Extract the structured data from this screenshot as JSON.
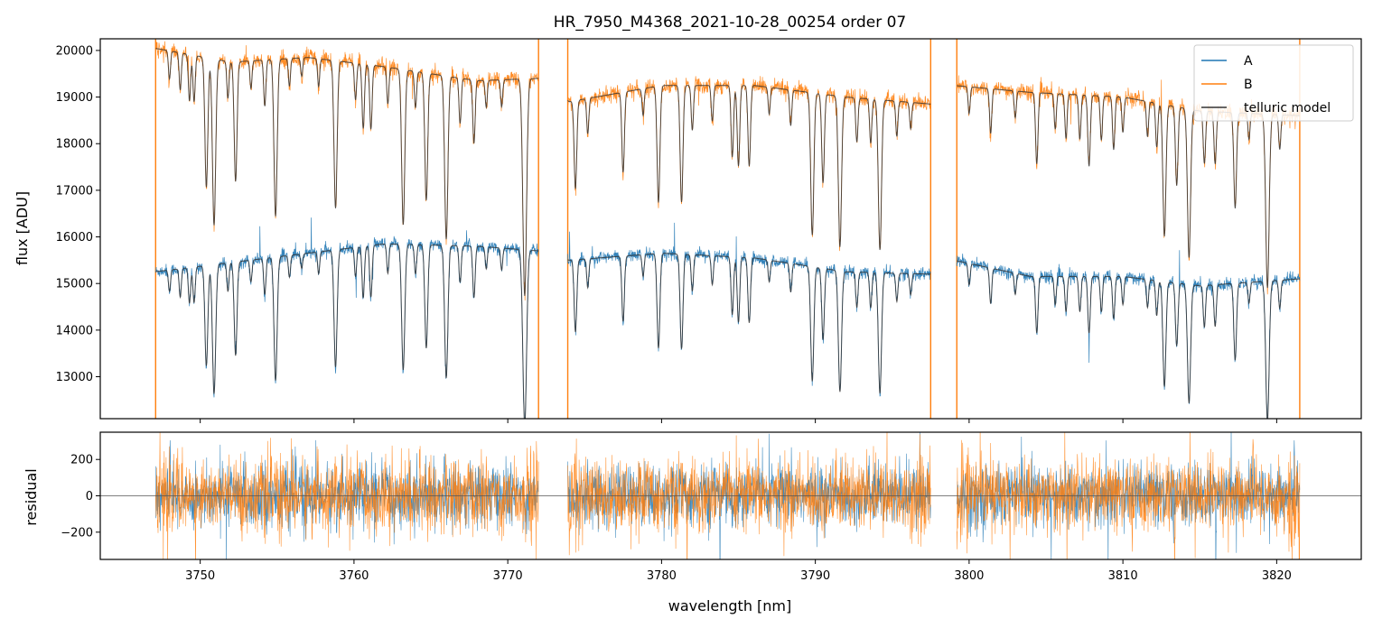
{
  "chart_data": {
    "type": "line",
    "title": "HR_7950_M4368_2021-10-28_00254  order 07",
    "colors": {
      "A": "#1f77b4",
      "B": "#ff7f0e",
      "telluric": "#333333",
      "zero": "#555555"
    },
    "xlabel": "wavelength [nm]",
    "xlim": [
      3743.5,
      3825.5
    ],
    "xticks": [
      3750,
      3760,
      3770,
      3780,
      3790,
      3800,
      3810,
      3820
    ],
    "xtick_labels": [
      "3750",
      "3760",
      "3770",
      "3780",
      "3790",
      "3800",
      "3810",
      "3820"
    ],
    "segments": [
      [
        3747.1,
        3772.0
      ],
      [
        3773.9,
        3797.5
      ],
      [
        3799.2,
        3821.5
      ]
    ],
    "legend_position": "top-right",
    "top": {
      "ylabel": "flux [ADU]",
      "ylim": [
        12100,
        20250
      ],
      "yticks": [
        13000,
        14000,
        15000,
        16000,
        17000,
        18000,
        19000,
        20000
      ],
      "ytick_labels": [
        "13000",
        "14000",
        "15000",
        "16000",
        "17000",
        "18000",
        "19000",
        "20000"
      ],
      "series": [
        {
          "name": "A",
          "key": "A",
          "continuum": [
            [
              3747,
              15250
            ],
            [
              3757,
              15650
            ],
            [
              3762,
              15850
            ],
            [
              3768,
              15800
            ],
            [
              3772,
              15700
            ],
            [
              3774,
              15500
            ],
            [
              3780,
              15650
            ],
            [
              3786,
              15550
            ],
            [
              3792,
              15250
            ],
            [
              3797.5,
              15200
            ],
            [
              3799,
              15500
            ],
            [
              3804,
              15150
            ],
            [
              3810,
              15150
            ],
            [
              3815,
              14950
            ],
            [
              3821.5,
              15100
            ]
          ]
        },
        {
          "name": "B",
          "key": "B",
          "continuum": [
            [
              3747,
              20050
            ],
            [
              3752,
              19750
            ],
            [
              3757,
              19850
            ],
            [
              3762,
              19650
            ],
            [
              3768,
              19350
            ],
            [
              3772,
              19400
            ],
            [
              3774,
              18900
            ],
            [
              3780,
              19250
            ],
            [
              3786,
              19250
            ],
            [
              3792,
              19000
            ],
            [
              3797.5,
              18850
            ],
            [
              3799,
              19250
            ],
            [
              3804,
              19100
            ],
            [
              3810,
              19000
            ],
            [
              3815,
              18700
            ],
            [
              3821.5,
              18600
            ]
          ]
        }
      ],
      "model_name": "telluric model",
      "lines": [
        [
          3748.0,
          0.03
        ],
        [
          3748.7,
          0.04
        ],
        [
          3749.3,
          0.05
        ],
        [
          3749.6,
          0.05
        ],
        [
          3750.4,
          0.14
        ],
        [
          3750.9,
          0.18
        ],
        [
          3751.8,
          0.04
        ],
        [
          3752.3,
          0.13
        ],
        [
          3753.3,
          0.03
        ],
        [
          3754.2,
          0.05
        ],
        [
          3754.9,
          0.17
        ],
        [
          3755.8,
          0.03
        ],
        [
          3756.6,
          0.02
        ],
        [
          3757.7,
          0.03
        ],
        [
          3758.8,
          0.16
        ],
        [
          3760.1,
          0.04
        ],
        [
          3760.6,
          0.07
        ],
        [
          3761.1,
          0.07
        ],
        [
          3762.2,
          0.04
        ],
        [
          3763.2,
          0.17
        ],
        [
          3764.0,
          0.04
        ],
        [
          3764.7,
          0.14
        ],
        [
          3766.0,
          0.18
        ],
        [
          3766.9,
          0.05
        ],
        [
          3767.8,
          0.07
        ],
        [
          3768.6,
          0.03
        ],
        [
          3769.6,
          0.03
        ],
        [
          3771.1,
          0.24
        ],
        [
          3774.4,
          0.1
        ],
        [
          3775.2,
          0.04
        ],
        [
          3777.5,
          0.09
        ],
        [
          3778.8,
          0.03
        ],
        [
          3779.8,
          0.13
        ],
        [
          3781.3,
          0.13
        ],
        [
          3782.0,
          0.05
        ],
        [
          3783.3,
          0.04
        ],
        [
          3784.6,
          0.08
        ],
        [
          3785.0,
          0.09
        ],
        [
          3785.7,
          0.09
        ],
        [
          3787.0,
          0.03
        ],
        [
          3788.4,
          0.04
        ],
        [
          3789.8,
          0.16
        ],
        [
          3790.5,
          0.1
        ],
        [
          3791.6,
          0.17
        ],
        [
          3792.7,
          0.05
        ],
        [
          3793.6,
          0.05
        ],
        [
          3794.2,
          0.17
        ],
        [
          3795.3,
          0.04
        ],
        [
          3796.2,
          0.03
        ],
        [
          3800.0,
          0.03
        ],
        [
          3801.4,
          0.05
        ],
        [
          3803.0,
          0.03
        ],
        [
          3804.4,
          0.08
        ],
        [
          3805.6,
          0.04
        ],
        [
          3806.3,
          0.05
        ],
        [
          3807.2,
          0.05
        ],
        [
          3807.8,
          0.08
        ],
        [
          3808.6,
          0.05
        ],
        [
          3809.4,
          0.06
        ],
        [
          3810.0,
          0.04
        ],
        [
          3811.6,
          0.04
        ],
        [
          3812.2,
          0.05
        ],
        [
          3812.7,
          0.15
        ],
        [
          3813.5,
          0.09
        ],
        [
          3814.3,
          0.17
        ],
        [
          3815.3,
          0.06
        ],
        [
          3816.0,
          0.06
        ],
        [
          3817.3,
          0.11
        ],
        [
          3818.2,
          0.03
        ],
        [
          3819.4,
          0.2
        ],
        [
          3820.2,
          0.04
        ]
      ]
    },
    "bottom": {
      "ylabel": "residual",
      "ylim": [
        -350,
        350
      ],
      "yticks": [
        -200,
        0,
        200
      ],
      "ytick_labels": [
        "−200",
        "0",
        "200"
      ],
      "noise": {
        "A": 85,
        "B": 100
      }
    }
  }
}
